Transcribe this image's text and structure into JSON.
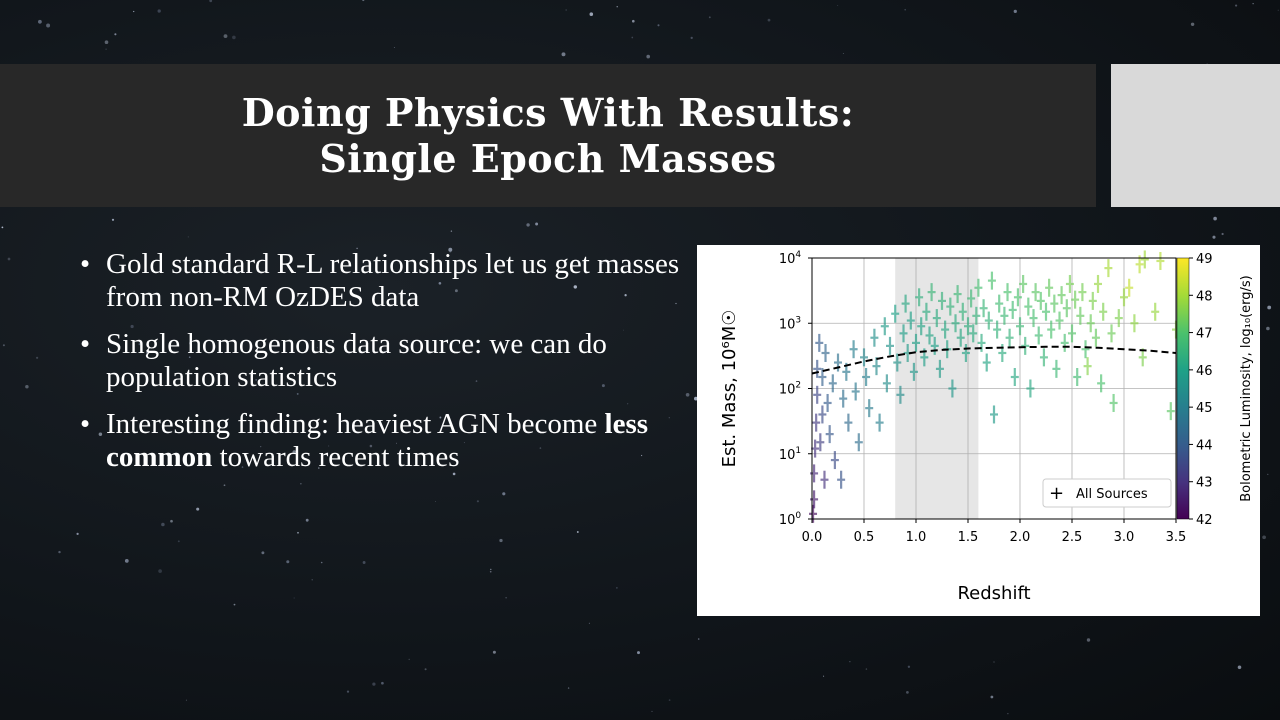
{
  "slide": {
    "title_line1": "Doing Physics With Results:",
    "title_line2": "Single Epoch Masses"
  },
  "bullets": [
    {
      "text": "Gold standard R-L relationships let us get masses from non-RM OzDES data"
    },
    {
      "text": "Single homogenous data source: we can do population statistics"
    },
    {
      "text_before": "Interesting finding: heaviest AGN become ",
      "emphasis": "less common",
      "text_after": " towards recent times"
    }
  ],
  "colors": {
    "title_bar": "#282828",
    "side_panel": "#d9d9d9",
    "text": "#ffffff",
    "highlight_band": "#e6e6e6"
  },
  "chart_data": {
    "type": "scatter",
    "xlabel": "Redshift",
    "ylabel": "Est. Mass, 10⁶M☉",
    "colorbar_label": "Bolometric Luminosity, log₁₀(erg/s)",
    "colorbar_ticks": [
      "42",
      "43",
      "44",
      "45",
      "46",
      "47",
      "48",
      "49"
    ],
    "colorbar_range": [
      42,
      49
    ],
    "x_ticks": [
      "0.0",
      "0.5",
      "1.0",
      "1.5",
      "2.0",
      "2.5",
      "3.0",
      "3.5"
    ],
    "xlim": [
      0,
      3.5
    ],
    "y_scale": "log",
    "y_ticks": [
      {
        "base": "10",
        "exp": "0",
        "value": 1
      },
      {
        "base": "10",
        "exp": "1",
        "value": 10
      },
      {
        "base": "10",
        "exp": "2",
        "value": 100
      },
      {
        "base": "10",
        "exp": "3",
        "value": 1000
      },
      {
        "base": "10",
        "exp": "4",
        "value": 10000
      }
    ],
    "ylim": [
      1,
      10000
    ],
    "grid": true,
    "highlight_band_x": [
      0.8,
      1.6
    ],
    "legend": {
      "label": "All Sources",
      "position": "lower right"
    },
    "trend_curve": {
      "style": "dashed",
      "x": [
        0.0,
        0.25,
        0.5,
        0.75,
        1.0,
        1.25,
        1.5,
        1.75,
        2.0,
        2.25,
        2.5,
        2.75,
        3.0,
        3.25,
        3.5
      ],
      "y": [
        170,
        210,
        260,
        310,
        360,
        390,
        410,
        420,
        430,
        435,
        435,
        420,
        400,
        380,
        350
      ]
    },
    "points": [
      {
        "x": 0.01,
        "y": 1.2,
        "c": 42.2
      },
      {
        "x": 0.02,
        "y": 2,
        "c": 42.5
      },
      {
        "x": 0.02,
        "y": 5,
        "c": 42.8
      },
      {
        "x": 0.03,
        "y": 12,
        "c": 43.0
      },
      {
        "x": 0.04,
        "y": 30,
        "c": 43.2
      },
      {
        "x": 0.05,
        "y": 80,
        "c": 43.5
      },
      {
        "x": 0.05,
        "y": 200,
        "c": 43.8
      },
      {
        "x": 0.07,
        "y": 500,
        "c": 44.0
      },
      {
        "x": 0.08,
        "y": 15,
        "c": 43.3
      },
      {
        "x": 0.1,
        "y": 40,
        "c": 43.6
      },
      {
        "x": 0.1,
        "y": 150,
        "c": 44.1
      },
      {
        "x": 0.12,
        "y": 4,
        "c": 43.0
      },
      {
        "x": 0.13,
        "y": 350,
        "c": 44.3
      },
      {
        "x": 0.15,
        "y": 60,
        "c": 44.0
      },
      {
        "x": 0.17,
        "y": 20,
        "c": 43.9
      },
      {
        "x": 0.2,
        "y": 120,
        "c": 44.4
      },
      {
        "x": 0.22,
        "y": 8,
        "c": 43.6
      },
      {
        "x": 0.25,
        "y": 250,
        "c": 44.6
      },
      {
        "x": 0.28,
        "y": 4,
        "c": 43.8
      },
      {
        "x": 0.3,
        "y": 70,
        "c": 44.5
      },
      {
        "x": 0.33,
        "y": 180,
        "c": 44.8
      },
      {
        "x": 0.35,
        "y": 30,
        "c": 44.4
      },
      {
        "x": 0.4,
        "y": 400,
        "c": 45.0
      },
      {
        "x": 0.42,
        "y": 90,
        "c": 44.8
      },
      {
        "x": 0.45,
        "y": 15,
        "c": 44.5
      },
      {
        "x": 0.5,
        "y": 300,
        "c": 45.2
      },
      {
        "x": 0.52,
        "y": 150,
        "c": 45.0
      },
      {
        "x": 0.55,
        "y": 50,
        "c": 44.9
      },
      {
        "x": 0.6,
        "y": 600,
        "c": 45.5
      },
      {
        "x": 0.62,
        "y": 220,
        "c": 45.3
      },
      {
        "x": 0.65,
        "y": 30,
        "c": 45.0
      },
      {
        "x": 0.7,
        "y": 900,
        "c": 45.8
      },
      {
        "x": 0.72,
        "y": 120,
        "c": 45.4
      },
      {
        "x": 0.75,
        "y": 450,
        "c": 45.6
      },
      {
        "x": 0.8,
        "y": 1400,
        "c": 46.0
      },
      {
        "x": 0.82,
        "y": 250,
        "c": 45.6
      },
      {
        "x": 0.85,
        "y": 80,
        "c": 45.4
      },
      {
        "x": 0.88,
        "y": 700,
        "c": 45.9
      },
      {
        "x": 0.9,
        "y": 2000,
        "c": 46.2
      },
      {
        "x": 0.92,
        "y": 350,
        "c": 45.8
      },
      {
        "x": 0.95,
        "y": 1100,
        "c": 46.0
      },
      {
        "x": 0.98,
        "y": 180,
        "c": 45.7
      },
      {
        "x": 1.0,
        "y": 500,
        "c": 46.0
      },
      {
        "x": 1.03,
        "y": 2500,
        "c": 46.4
      },
      {
        "x": 1.05,
        "y": 900,
        "c": 46.1
      },
      {
        "x": 1.08,
        "y": 300,
        "c": 45.9
      },
      {
        "x": 1.1,
        "y": 1500,
        "c": 46.3
      },
      {
        "x": 1.13,
        "y": 650,
        "c": 46.1
      },
      {
        "x": 1.15,
        "y": 3000,
        "c": 46.6
      },
      {
        "x": 1.18,
        "y": 450,
        "c": 46.0
      },
      {
        "x": 1.2,
        "y": 1200,
        "c": 46.3
      },
      {
        "x": 1.23,
        "y": 200,
        "c": 45.8
      },
      {
        "x": 1.25,
        "y": 2200,
        "c": 46.5
      },
      {
        "x": 1.28,
        "y": 800,
        "c": 46.2
      },
      {
        "x": 1.3,
        "y": 400,
        "c": 46.1
      },
      {
        "x": 1.33,
        "y": 1800,
        "c": 46.5
      },
      {
        "x": 1.35,
        "y": 100,
        "c": 45.7
      },
      {
        "x": 1.38,
        "y": 1000,
        "c": 46.3
      },
      {
        "x": 1.4,
        "y": 2800,
        "c": 46.7
      },
      {
        "x": 1.43,
        "y": 600,
        "c": 46.2
      },
      {
        "x": 1.45,
        "y": 1500,
        "c": 46.5
      },
      {
        "x": 1.48,
        "y": 350,
        "c": 46.1
      },
      {
        "x": 1.5,
        "y": 900,
        "c": 46.4
      },
      {
        "x": 1.53,
        "y": 2400,
        "c": 46.7
      },
      {
        "x": 1.55,
        "y": 700,
        "c": 46.3
      },
      {
        "x": 1.58,
        "y": 1300,
        "c": 46.5
      },
      {
        "x": 1.6,
        "y": 3500,
        "c": 46.9
      },
      {
        "x": 1.63,
        "y": 500,
        "c": 46.3
      },
      {
        "x": 1.65,
        "y": 1700,
        "c": 46.6
      },
      {
        "x": 1.68,
        "y": 250,
        "c": 46.1
      },
      {
        "x": 1.7,
        "y": 1100,
        "c": 46.5
      },
      {
        "x": 1.73,
        "y": 4500,
        "c": 47.0
      },
      {
        "x": 1.75,
        "y": 40,
        "c": 45.8
      },
      {
        "x": 1.78,
        "y": 800,
        "c": 46.5
      },
      {
        "x": 1.8,
        "y": 2000,
        "c": 46.8
      },
      {
        "x": 1.83,
        "y": 350,
        "c": 46.3
      },
      {
        "x": 1.85,
        "y": 1300,
        "c": 46.7
      },
      {
        "x": 1.88,
        "y": 3000,
        "c": 47.0
      },
      {
        "x": 1.9,
        "y": 600,
        "c": 46.5
      },
      {
        "x": 1.93,
        "y": 1600,
        "c": 46.8
      },
      {
        "x": 1.95,
        "y": 150,
        "c": 46.2
      },
      {
        "x": 1.98,
        "y": 2500,
        "c": 47.0
      },
      {
        "x": 2.0,
        "y": 900,
        "c": 46.7
      },
      {
        "x": 2.03,
        "y": 4000,
        "c": 47.2
      },
      {
        "x": 2.05,
        "y": 450,
        "c": 46.5
      },
      {
        "x": 2.08,
        "y": 1800,
        "c": 47.0
      },
      {
        "x": 2.1,
        "y": 100,
        "c": 46.2
      },
      {
        "x": 2.13,
        "y": 1200,
        "c": 46.9
      },
      {
        "x": 2.15,
        "y": 3000,
        "c": 47.2
      },
      {
        "x": 2.18,
        "y": 650,
        "c": 46.8
      },
      {
        "x": 2.2,
        "y": 2200,
        "c": 47.1
      },
      {
        "x": 2.23,
        "y": 300,
        "c": 46.6
      },
      {
        "x": 2.25,
        "y": 1500,
        "c": 47.0
      },
      {
        "x": 2.28,
        "y": 3500,
        "c": 47.3
      },
      {
        "x": 2.3,
        "y": 800,
        "c": 47.0
      },
      {
        "x": 2.33,
        "y": 2000,
        "c": 47.2
      },
      {
        "x": 2.35,
        "y": 200,
        "c": 46.7
      },
      {
        "x": 2.38,
        "y": 1100,
        "c": 47.1
      },
      {
        "x": 2.4,
        "y": 2700,
        "c": 47.3
      },
      {
        "x": 2.43,
        "y": 500,
        "c": 46.9
      },
      {
        "x": 2.45,
        "y": 1700,
        "c": 47.2
      },
      {
        "x": 2.48,
        "y": 4000,
        "c": 47.5
      },
      {
        "x": 2.5,
        "y": 700,
        "c": 47.1
      },
      {
        "x": 2.53,
        "y": 2300,
        "c": 47.4
      },
      {
        "x": 2.55,
        "y": 150,
        "c": 46.8
      },
      {
        "x": 2.58,
        "y": 1300,
        "c": 47.3
      },
      {
        "x": 2.6,
        "y": 3000,
        "c": 47.5
      },
      {
        "x": 2.63,
        "y": 400,
        "c": 47.0
      },
      {
        "x": 2.65,
        "y": 220,
        "c": 47.7
      },
      {
        "x": 2.68,
        "y": 1000,
        "c": 47.4
      },
      {
        "x": 2.7,
        "y": 2200,
        "c": 47.6
      },
      {
        "x": 2.73,
        "y": 600,
        "c": 47.3
      },
      {
        "x": 2.75,
        "y": 4000,
        "c": 47.9
      },
      {
        "x": 2.78,
        "y": 120,
        "c": 47.0
      },
      {
        "x": 2.8,
        "y": 1500,
        "c": 47.6
      },
      {
        "x": 2.85,
        "y": 7000,
        "c": 48.1
      },
      {
        "x": 2.88,
        "y": 700,
        "c": 47.4
      },
      {
        "x": 2.9,
        "y": 60,
        "c": 47.1
      },
      {
        "x": 2.95,
        "y": 1200,
        "c": 47.6
      },
      {
        "x": 3.0,
        "y": 2500,
        "c": 47.9
      },
      {
        "x": 3.05,
        "y": 3500,
        "c": 48.4
      },
      {
        "x": 3.1,
        "y": 1000,
        "c": 47.8
      },
      {
        "x": 3.15,
        "y": 8000,
        "c": 48.3
      },
      {
        "x": 3.18,
        "y": 300,
        "c": 47.6
      },
      {
        "x": 3.2,
        "y": 9500,
        "c": 48.0
      },
      {
        "x": 3.3,
        "y": 1500,
        "c": 47.9
      },
      {
        "x": 3.35,
        "y": 9000,
        "c": 48.2
      },
      {
        "x": 3.45,
        "y": 45,
        "c": 47.2
      },
      {
        "x": 3.5,
        "y": 800,
        "c": 47.8
      }
    ]
  }
}
